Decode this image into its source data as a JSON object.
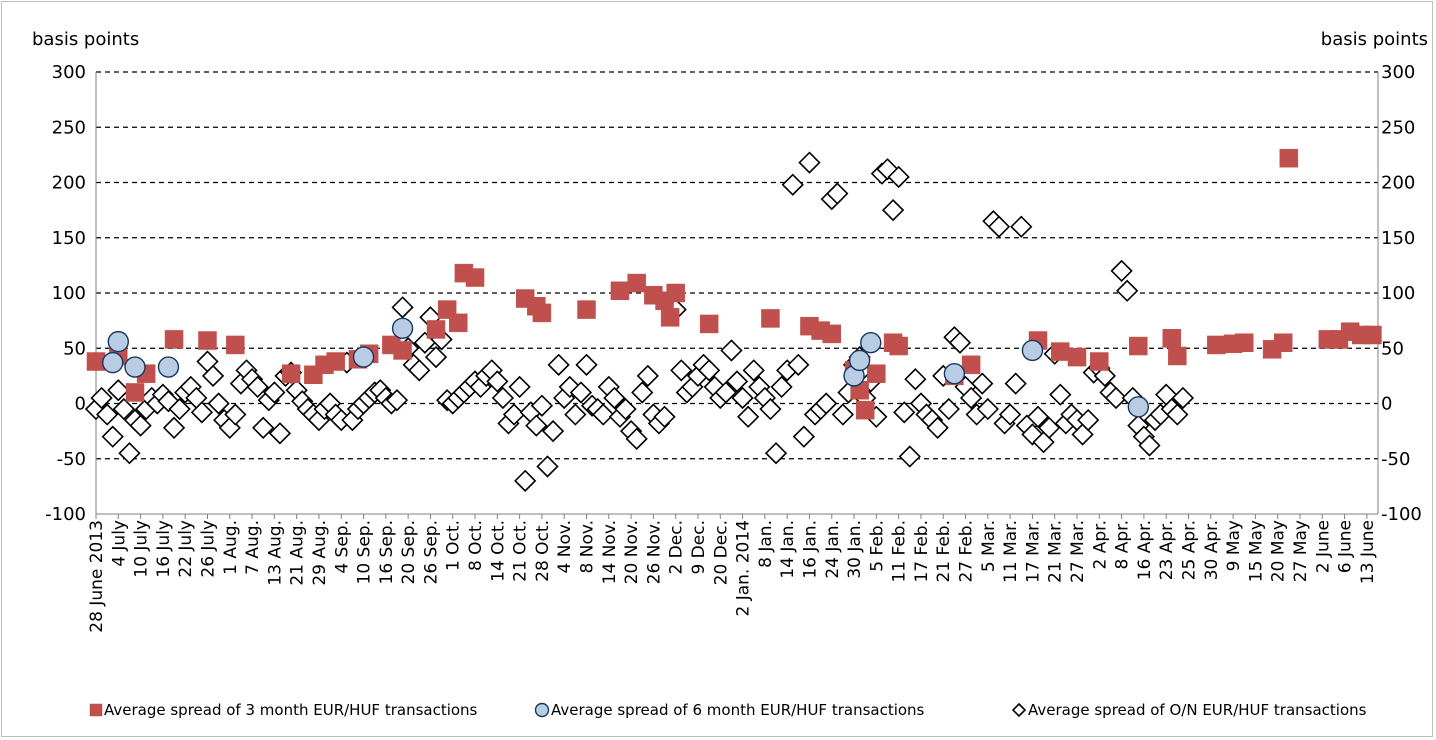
{
  "chart_data": {
    "type": "scatter",
    "left_axis_unit": "basis points",
    "right_axis_unit": "basis points",
    "ylim": [
      -100,
      300
    ],
    "yticks": [
      -100,
      -50,
      0,
      50,
      100,
      150,
      200,
      250,
      300
    ],
    "yticks_right": [
      "-100",
      "-50",
      "0",
      "50",
      "100",
      "150",
      "200",
      "250",
      "300"
    ],
    "grid": "horizontal dashed",
    "x_index_range": [
      0,
      230
    ],
    "x_tick_labels": [
      {
        "i": 0,
        "label": "28 June 2013"
      },
      {
        "i": 4,
        "label": "4 July"
      },
      {
        "i": 8,
        "label": "10 July"
      },
      {
        "i": 12,
        "label": "16 July"
      },
      {
        "i": 16,
        "label": "22 July"
      },
      {
        "i": 20,
        "label": "26 July"
      },
      {
        "i": 24,
        "label": "1 Aug."
      },
      {
        "i": 28,
        "label": "7 Aug."
      },
      {
        "i": 32,
        "label": "13 Aug."
      },
      {
        "i": 36,
        "label": "21 Aug."
      },
      {
        "i": 40,
        "label": "29 Aug."
      },
      {
        "i": 44,
        "label": "4 Sep."
      },
      {
        "i": 48,
        "label": "10 Sep."
      },
      {
        "i": 52,
        "label": "16 Sep."
      },
      {
        "i": 56,
        "label": "20 Sep."
      },
      {
        "i": 60,
        "label": "26 Sep."
      },
      {
        "i": 64,
        "label": "1 Oct."
      },
      {
        "i": 68,
        "label": "8 Oct."
      },
      {
        "i": 72,
        "label": "14 Oct."
      },
      {
        "i": 76,
        "label": "21 Oct."
      },
      {
        "i": 80,
        "label": "28 Oct."
      },
      {
        "i": 84,
        "label": "4 Nov."
      },
      {
        "i": 88,
        "label": "8 Nov."
      },
      {
        "i": 92,
        "label": "14 Nov."
      },
      {
        "i": 96,
        "label": "20 Nov."
      },
      {
        "i": 100,
        "label": "26 Nov."
      },
      {
        "i": 104,
        "label": "2 Dec."
      },
      {
        "i": 108,
        "label": "9 Dec."
      },
      {
        "i": 112,
        "label": "20 Dec."
      },
      {
        "i": 116,
        "label": "2 Jan. 2014"
      },
      {
        "i": 120,
        "label": "8 Jan."
      },
      {
        "i": 124,
        "label": "14 Jan."
      },
      {
        "i": 128,
        "label": "16 Jan."
      },
      {
        "i": 132,
        "label": "24 Jan."
      },
      {
        "i": 136,
        "label": "30 Jan."
      },
      {
        "i": 140,
        "label": "5 Feb."
      },
      {
        "i": 144,
        "label": "11 Feb."
      },
      {
        "i": 148,
        "label": "17 Feb."
      },
      {
        "i": 152,
        "label": "21 Feb."
      },
      {
        "i": 156,
        "label": "27 Feb."
      },
      {
        "i": 160,
        "label": "5 Mar."
      },
      {
        "i": 164,
        "label": "11 Mar."
      },
      {
        "i": 168,
        "label": "17 Mar."
      },
      {
        "i": 172,
        "label": "21 Mar."
      },
      {
        "i": 176,
        "label": "27 Mar."
      },
      {
        "i": 180,
        "label": "2 Apr."
      },
      {
        "i": 184,
        "label": "8 Apr."
      },
      {
        "i": 188,
        "label": "16 Apr."
      },
      {
        "i": 192,
        "label": "23 Apr."
      },
      {
        "i": 196,
        "label": "25 Apr."
      },
      {
        "i": 200,
        "label": "30 Apr."
      },
      {
        "i": 204,
        "label": "9 May"
      },
      {
        "i": 208,
        "label": "15 May"
      },
      {
        "i": 212,
        "label": "20 May"
      },
      {
        "i": 216,
        "label": "27 May"
      },
      {
        "i": 220,
        "label": "2 June"
      },
      {
        "i": 224,
        "label": "6 June"
      },
      {
        "i": 228,
        "label": "13 June"
      }
    ],
    "legend_position": "bottom",
    "series": [
      {
        "name": "Average spread of 3 month EUR/HUF transactions",
        "color": "#c0504d",
        "marker": "square",
        "points": [
          [
            0,
            38
          ],
          [
            4,
            43
          ],
          [
            7,
            10
          ],
          [
            9,
            27
          ],
          [
            14,
            58
          ],
          [
            20,
            57
          ],
          [
            25,
            53
          ],
          [
            35,
            27
          ],
          [
            39,
            26
          ],
          [
            41,
            35
          ],
          [
            43,
            38
          ],
          [
            47,
            40
          ],
          [
            49,
            45
          ],
          [
            53,
            53
          ],
          [
            55,
            48
          ],
          [
            61,
            67
          ],
          [
            63,
            85
          ],
          [
            65,
            73
          ],
          [
            66,
            118
          ],
          [
            68,
            114
          ],
          [
            77,
            95
          ],
          [
            79,
            88
          ],
          [
            80,
            82
          ],
          [
            88,
            85
          ],
          [
            94,
            102
          ],
          [
            97,
            109
          ],
          [
            100,
            98
          ],
          [
            102,
            93
          ],
          [
            103,
            78
          ],
          [
            104,
            100
          ],
          [
            110,
            72
          ],
          [
            121,
            77
          ],
          [
            128,
            70
          ],
          [
            130,
            66
          ],
          [
            132,
            63
          ],
          [
            136,
            30
          ],
          [
            137,
            12
          ],
          [
            138,
            -6
          ],
          [
            140,
            27
          ],
          [
            143,
            55
          ],
          [
            144,
            52
          ],
          [
            154,
            25
          ],
          [
            157,
            35
          ],
          [
            169,
            57
          ],
          [
            173,
            47
          ],
          [
            176,
            42
          ],
          [
            180,
            38
          ],
          [
            187,
            52
          ],
          [
            193,
            59
          ],
          [
            194,
            43
          ],
          [
            201,
            53
          ],
          [
            204,
            54
          ],
          [
            206,
            55
          ],
          [
            211,
            49
          ],
          [
            213,
            55
          ],
          [
            214,
            222
          ],
          [
            221,
            58
          ],
          [
            223,
            58
          ],
          [
            225,
            65
          ],
          [
            227,
            62
          ],
          [
            229,
            62
          ]
        ]
      },
      {
        "name": "Average spread of 6 month EUR/HUF transactions",
        "color": "#b8cce4",
        "marker": "circle",
        "points": [
          [
            3,
            37
          ],
          [
            4,
            56
          ],
          [
            7,
            33
          ],
          [
            13,
            33
          ],
          [
            48,
            42
          ],
          [
            55,
            68
          ],
          [
            136,
            25
          ],
          [
            137,
            39
          ],
          [
            139,
            55
          ],
          [
            154,
            27
          ],
          [
            168,
            48
          ],
          [
            187,
            -3
          ]
        ]
      },
      {
        "name": "Average spread of O/N EUR/HUF transactions",
        "color": "#ffffff",
        "marker": "diamond",
        "points": [
          [
            0,
            -5
          ],
          [
            1,
            5
          ],
          [
            2,
            -10
          ],
          [
            3,
            -30
          ],
          [
            4,
            12
          ],
          [
            5,
            -5
          ],
          [
            6,
            -45
          ],
          [
            7,
            -15
          ],
          [
            8,
            -20
          ],
          [
            9,
            -5
          ],
          [
            10,
            5
          ],
          [
            11,
            0
          ],
          [
            12,
            8
          ],
          [
            13,
            2
          ],
          [
            14,
            -22
          ],
          [
            15,
            -5
          ],
          [
            16,
            10
          ],
          [
            17,
            15
          ],
          [
            18,
            5
          ],
          [
            19,
            -8
          ],
          [
            20,
            38
          ],
          [
            21,
            25
          ],
          [
            22,
            0
          ],
          [
            23,
            -15
          ],
          [
            24,
            -22
          ],
          [
            25,
            -10
          ],
          [
            26,
            18
          ],
          [
            27,
            30
          ],
          [
            28,
            22
          ],
          [
            29,
            15
          ],
          [
            30,
            -22
          ],
          [
            31,
            3
          ],
          [
            32,
            10
          ],
          [
            33,
            -27
          ],
          [
            34,
            25
          ],
          [
            35,
            28
          ],
          [
            36,
            12
          ],
          [
            37,
            2
          ],
          [
            38,
            -5
          ],
          [
            39,
            -10
          ],
          [
            40,
            -15
          ],
          [
            41,
            -5
          ],
          [
            42,
            0
          ],
          [
            43,
            -10
          ],
          [
            44,
            -15
          ],
          [
            45,
            37
          ],
          [
            46,
            -15
          ],
          [
            47,
            -5
          ],
          [
            48,
            0
          ],
          [
            49,
            5
          ],
          [
            50,
            10
          ],
          [
            51,
            12
          ],
          [
            52,
            5
          ],
          [
            53,
            0
          ],
          [
            54,
            3
          ],
          [
            55,
            87
          ],
          [
            56,
            50
          ],
          [
            57,
            35
          ],
          [
            58,
            30
          ],
          [
            59,
            55
          ],
          [
            60,
            78
          ],
          [
            61,
            42
          ],
          [
            62,
            58
          ],
          [
            63,
            3
          ],
          [
            64,
            0
          ],
          [
            65,
            5
          ],
          [
            66,
            10
          ],
          [
            67,
            15
          ],
          [
            68,
            20
          ],
          [
            69,
            15
          ],
          [
            70,
            25
          ],
          [
            71,
            30
          ],
          [
            72,
            20
          ],
          [
            73,
            5
          ],
          [
            74,
            -18
          ],
          [
            75,
            -10
          ],
          [
            76,
            15
          ],
          [
            77,
            -70
          ],
          [
            78,
            -8
          ],
          [
            79,
            -20
          ],
          [
            80,
            -2
          ],
          [
            81,
            -57
          ],
          [
            82,
            -25
          ],
          [
            83,
            35
          ],
          [
            84,
            5
          ],
          [
            85,
            15
          ],
          [
            86,
            -10
          ],
          [
            87,
            10
          ],
          [
            88,
            35
          ],
          [
            89,
            -2
          ],
          [
            90,
            -5
          ],
          [
            91,
            -10
          ],
          [
            92,
            15
          ],
          [
            93,
            5
          ],
          [
            94,
            -12
          ],
          [
            95,
            -5
          ],
          [
            96,
            -25
          ],
          [
            97,
            -32
          ],
          [
            98,
            10
          ],
          [
            99,
            25
          ],
          [
            100,
            -10
          ],
          [
            101,
            -18
          ],
          [
            102,
            -12
          ],
          [
            103,
            94
          ],
          [
            104,
            85
          ],
          [
            105,
            30
          ],
          [
            106,
            10
          ],
          [
            107,
            15
          ],
          [
            108,
            25
          ],
          [
            109,
            35
          ],
          [
            110,
            30
          ],
          [
            111,
            15
          ],
          [
            112,
            5
          ],
          [
            113,
            10
          ],
          [
            114,
            48
          ],
          [
            115,
            20
          ],
          [
            116,
            5
          ],
          [
            117,
            -12
          ],
          [
            118,
            30
          ],
          [
            119,
            15
          ],
          [
            120,
            5
          ],
          [
            121,
            -5
          ],
          [
            122,
            -45
          ],
          [
            123,
            15
          ],
          [
            124,
            30
          ],
          [
            125,
            198
          ],
          [
            126,
            35
          ],
          [
            127,
            -30
          ],
          [
            128,
            218
          ],
          [
            129,
            -10
          ],
          [
            130,
            -5
          ],
          [
            131,
            0
          ],
          [
            132,
            185
          ],
          [
            133,
            190
          ],
          [
            134,
            -10
          ],
          [
            135,
            10
          ],
          [
            136,
            35
          ],
          [
            137,
            42
          ],
          [
            138,
            5
          ],
          [
            139,
            20
          ],
          [
            140,
            -12
          ],
          [
            141,
            208
          ],
          [
            142,
            212
          ],
          [
            143,
            175
          ],
          [
            144,
            205
          ],
          [
            145,
            -8
          ],
          [
            146,
            -48
          ],
          [
            147,
            22
          ],
          [
            148,
            0
          ],
          [
            149,
            -10
          ],
          [
            150,
            -15
          ],
          [
            151,
            -22
          ],
          [
            152,
            25
          ],
          [
            153,
            -5
          ],
          [
            154,
            60
          ],
          [
            155,
            55
          ],
          [
            156,
            15
          ],
          [
            157,
            5
          ],
          [
            158,
            -10
          ],
          [
            159,
            18
          ],
          [
            160,
            -5
          ],
          [
            161,
            165
          ],
          [
            162,
            160
          ],
          [
            163,
            -18
          ],
          [
            164,
            -10
          ],
          [
            165,
            18
          ],
          [
            166,
            160
          ],
          [
            167,
            -20
          ],
          [
            168,
            -28
          ],
          [
            169,
            -12
          ],
          [
            170,
            -35
          ],
          [
            171,
            -22
          ],
          [
            172,
            45
          ],
          [
            173,
            8
          ],
          [
            174,
            -18
          ],
          [
            175,
            -10
          ],
          [
            176,
            -15
          ],
          [
            177,
            -28
          ],
          [
            178,
            -15
          ],
          [
            179,
            28
          ],
          [
            180,
            32
          ],
          [
            181,
            25
          ],
          [
            182,
            10
          ],
          [
            183,
            5
          ],
          [
            184,
            120
          ],
          [
            185,
            102
          ],
          [
            186,
            5
          ],
          [
            187,
            -20
          ],
          [
            188,
            -30
          ],
          [
            189,
            -38
          ],
          [
            190,
            -15
          ],
          [
            191,
            -10
          ],
          [
            192,
            8
          ],
          [
            193,
            -5
          ],
          [
            194,
            -10
          ],
          [
            195,
            5
          ]
        ]
      }
    ]
  }
}
